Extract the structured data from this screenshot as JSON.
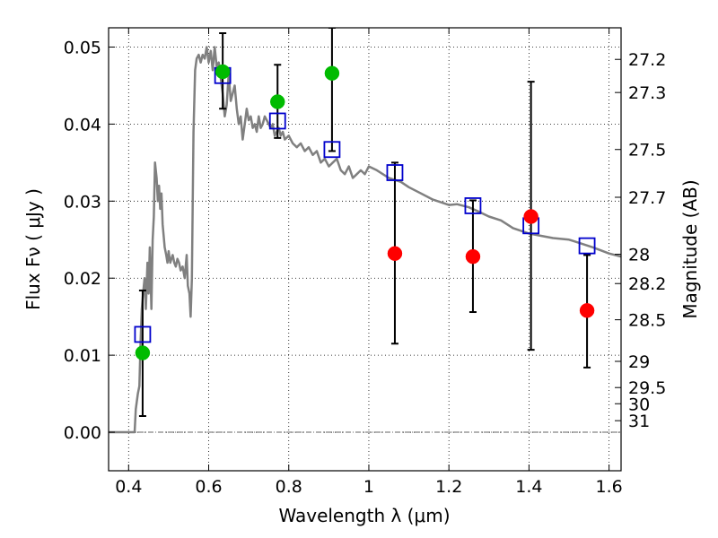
{
  "chart_data": {
    "type": "scatter",
    "xlabel": "Wavelength  λ (μm)",
    "ylabel": "Flux  Fν  ( μJy )",
    "ylabel_right": "Magnitude (AB)",
    "xlim": [
      0.35,
      1.63
    ],
    "ylim": [
      -0.005,
      0.0525
    ],
    "grid": true,
    "x_ticks": [
      0.4,
      0.6,
      0.8,
      1.0,
      1.2,
      1.4,
      1.6
    ],
    "x_tick_labels": [
      "0.4",
      "0.6",
      "0.8",
      "1",
      "1.2",
      "1.4",
      "1.6"
    ],
    "y_ticks": [
      0.0,
      0.01,
      0.02,
      0.03,
      0.04,
      0.05
    ],
    "y_tick_labels": [
      "0.00",
      "0.01",
      "0.02",
      "0.03",
      "0.04",
      "0.05"
    ],
    "right_ticks": [
      {
        "label": "27.2",
        "flux": 0.0484
      },
      {
        "label": "27.3",
        "flux": 0.0441
      },
      {
        "label": "27.5",
        "flux": 0.0367
      },
      {
        "label": "27.7",
        "flux": 0.0305
      },
      {
        "label": "28",
        "flux": 0.0231
      },
      {
        "label": "28.2",
        "flux": 0.0193
      },
      {
        "label": "28.5",
        "flux": 0.0146
      },
      {
        "label": "29",
        "flux": 0.0092
      },
      {
        "label": "29.5",
        "flux": 0.0058
      },
      {
        "label": "30",
        "flux": 0.0037
      },
      {
        "label": "31",
        "flux": 0.0015
      }
    ],
    "series": [
      {
        "kind": "model_sed",
        "color": "#808080",
        "x": [
          0.35,
          0.415,
          0.418,
          0.423,
          0.427,
          0.43,
          0.433,
          0.436,
          0.44,
          0.443,
          0.447,
          0.45,
          0.453,
          0.457,
          0.46,
          0.463,
          0.466,
          0.47,
          0.473,
          0.476,
          0.479,
          0.482,
          0.485,
          0.49,
          0.494,
          0.497,
          0.5,
          0.504,
          0.507,
          0.51,
          0.514,
          0.518,
          0.522,
          0.526,
          0.53,
          0.535,
          0.54,
          0.545,
          0.548,
          0.552,
          0.555,
          0.558,
          0.562,
          0.566,
          0.57,
          0.575,
          0.58,
          0.585,
          0.59,
          0.595,
          0.6,
          0.605,
          0.61,
          0.615,
          0.62,
          0.625,
          0.63,
          0.635,
          0.64,
          0.645,
          0.65,
          0.655,
          0.66,
          0.665,
          0.67,
          0.675,
          0.68,
          0.685,
          0.69,
          0.695,
          0.7,
          0.705,
          0.71,
          0.715,
          0.72,
          0.725,
          0.73,
          0.735,
          0.74,
          0.745,
          0.75,
          0.755,
          0.76,
          0.765,
          0.77,
          0.775,
          0.78,
          0.785,
          0.79,
          0.8,
          0.81,
          0.82,
          0.83,
          0.84,
          0.85,
          0.86,
          0.87,
          0.88,
          0.89,
          0.9,
          0.91,
          0.92,
          0.93,
          0.94,
          0.95,
          0.96,
          0.97,
          0.98,
          0.99,
          1.0,
          1.02,
          1.05,
          1.08,
          1.1,
          1.13,
          1.16,
          1.2,
          1.22,
          1.25,
          1.28,
          1.3,
          1.33,
          1.36,
          1.4,
          1.43,
          1.46,
          1.5,
          1.53,
          1.56,
          1.6,
          1.63
        ],
        "y": [
          0.0,
          0.0,
          0.003,
          0.005,
          0.006,
          0.012,
          0.016,
          0.018,
          0.02,
          0.016,
          0.022,
          0.018,
          0.024,
          0.016,
          0.025,
          0.028,
          0.035,
          0.033,
          0.03,
          0.032,
          0.029,
          0.031,
          0.027,
          0.024,
          0.023,
          0.022,
          0.0235,
          0.022,
          0.0225,
          0.023,
          0.022,
          0.0215,
          0.0225,
          0.022,
          0.021,
          0.0215,
          0.02,
          0.023,
          0.019,
          0.018,
          0.015,
          0.02,
          0.039,
          0.047,
          0.0485,
          0.049,
          0.048,
          0.049,
          0.0485,
          0.05,
          0.048,
          0.0495,
          0.047,
          0.05,
          0.0475,
          0.048,
          0.046,
          0.044,
          0.041,
          0.0425,
          0.0465,
          0.043,
          0.044,
          0.045,
          0.042,
          0.04,
          0.041,
          0.038,
          0.04,
          0.042,
          0.0405,
          0.041,
          0.0395,
          0.04,
          0.039,
          0.041,
          0.0395,
          0.04,
          0.041,
          0.0405,
          0.04,
          0.0395,
          0.04,
          0.0385,
          0.039,
          0.0395,
          0.0385,
          0.039,
          0.038,
          0.0385,
          0.0375,
          0.037,
          0.0375,
          0.0365,
          0.037,
          0.036,
          0.0365,
          0.035,
          0.0355,
          0.0345,
          0.035,
          0.0355,
          0.034,
          0.0335,
          0.0345,
          0.033,
          0.0335,
          0.034,
          0.0335,
          0.0345,
          0.034,
          0.033,
          0.0325,
          0.0318,
          0.031,
          0.0302,
          0.0295,
          0.0296,
          0.0292,
          0.0285,
          0.028,
          0.0275,
          0.0265,
          0.0258,
          0.0255,
          0.0252,
          0.025,
          0.0245,
          0.024,
          0.0232,
          0.0228
        ]
      },
      {
        "kind": "model_bandpass_flux",
        "color": "#0000cc",
        "marker": "square",
        "x": [
          0.435,
          0.635,
          0.772,
          0.908,
          1.065,
          1.26,
          1.405,
          1.545
        ],
        "y": [
          0.0127,
          0.0463,
          0.0404,
          0.0367,
          0.0337,
          0.0294,
          0.0268,
          0.0242
        ]
      },
      {
        "kind": "detections",
        "color": "#00bb00",
        "marker": "circle",
        "x": [
          0.435,
          0.635,
          0.772,
          0.908
        ],
        "y": [
          0.0103,
          0.0468,
          0.0429,
          0.0466
        ]
      },
      {
        "kind": "low_significance",
        "color": "#ff0000",
        "marker": "circle",
        "x": [
          1.065,
          1.26,
          1.405,
          1.545
        ],
        "y": [
          0.0232,
          0.0228,
          0.028,
          0.0158
        ]
      }
    ],
    "error_bars": [
      {
        "x": 0.435,
        "low": 0.0021,
        "high": 0.0184
      },
      {
        "x": 0.635,
        "low": 0.042,
        "high": 0.0518
      },
      {
        "x": 0.772,
        "low": 0.0382,
        "high": 0.0477
      },
      {
        "x": 0.908,
        "low": 0.0365,
        "high": 0.0525
      },
      {
        "x": 1.065,
        "low": 0.0115,
        "high": 0.035
      },
      {
        "x": 1.26,
        "low": 0.0156,
        "high": 0.0301
      },
      {
        "x": 1.405,
        "low": 0.0107,
        "high": 0.0455
      },
      {
        "x": 1.545,
        "low": 0.0084,
        "high": 0.023
      }
    ]
  }
}
